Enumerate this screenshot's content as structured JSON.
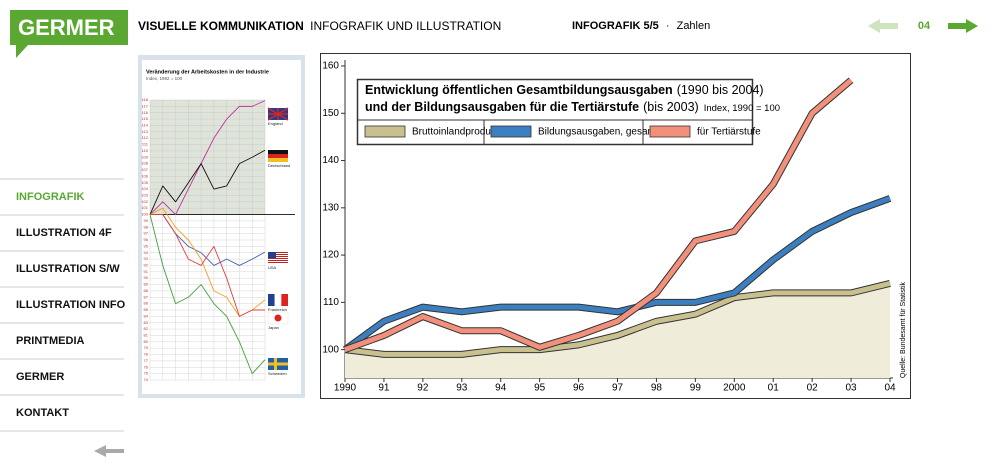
{
  "header": {
    "logo": "GERMER",
    "section": "VISUELLE KOMMUNIKATION",
    "subtitle": "INFOGRAFIK UND ILLUSTRATION",
    "page": "INFOGRAFIK 5/5",
    "separator": "·",
    "page_topic": "Zahlen",
    "page_number": "04"
  },
  "nav": [
    "INFOGRAFIK",
    "ILLUSTRATION 4F",
    "ILLUSTRATION S/W",
    "ILLUSTRATION INFO",
    "PRINTMEDIA",
    "GERMER",
    "KONTAKT"
  ],
  "chart_data": [
    {
      "type": "line",
      "title": [
        "Entwicklung öffentlichen Gesamtbildungsausgaben",
        "und der Bildungsausgaben für die Tertiärstufe"
      ],
      "title_notes": [
        "(1990 bis 2004)",
        "(bis 2003)"
      ],
      "subtitle": "Index, 1990 = 100",
      "source": "Quelle: Bundesamt für Statistik",
      "categories": [
        "1990",
        "91",
        "92",
        "93",
        "94",
        "95",
        "96",
        "97",
        "98",
        "99",
        "2000",
        "01",
        "02",
        "03",
        "04"
      ],
      "series": [
        {
          "name": "Bruttoinlandprodukt",
          "color": "#c9c08f",
          "fill": "#efecd9",
          "values": [
            100,
            99,
            99,
            99,
            100,
            100,
            101,
            103,
            106,
            107.5,
            111,
            112,
            112,
            112,
            114
          ]
        },
        {
          "name": "Bildungsausgaben, gesamt",
          "color": "#3b7fc0",
          "values": [
            100,
            106,
            109,
            108,
            109,
            109,
            109,
            108,
            110,
            110,
            112,
            119,
            125,
            129,
            132
          ]
        },
        {
          "name": "für Tertiärstufe",
          "color": "#f2907c",
          "values": [
            100,
            103,
            107,
            104,
            104,
            100.5,
            103,
            106,
            112,
            123,
            125,
            135,
            150,
            157,
            null
          ]
        }
      ],
      "ylim": [
        94,
        160
      ],
      "yticks": [
        100,
        110,
        120,
        130,
        140,
        150,
        160
      ],
      "grid": false
    },
    {
      "type": "line",
      "title": "Veränderung der Arbeitskosten in der Industrie",
      "subtitle": "Index, 1992 = 100",
      "categories": [
        null,
        null,
        null,
        null,
        null,
        null,
        null,
        null,
        null,
        null
      ],
      "series": [
        {
          "name": "England",
          "color": "#c0309a",
          "values": [
            100,
            102,
            100,
            104,
            108,
            112,
            115,
            117,
            117,
            117.9
          ]
        },
        {
          "name": "Deutschland",
          "color": "#111111",
          "values": [
            100,
            104.5,
            102,
            105,
            108,
            104,
            104.5,
            108,
            109,
            110.1
          ]
        },
        {
          "name": "USA",
          "color": "#4a5fb0",
          "values": [
            100,
            100,
            97,
            95,
            94,
            92,
            93,
            92,
            93,
            94.1
          ]
        },
        {
          "name": "Frankreich",
          "color": "#f0a020",
          "values": [
            100,
            101,
            98,
            96,
            93,
            88,
            87,
            84,
            85,
            86.6
          ]
        },
        {
          "name": "Japan",
          "color": "#e04040",
          "values": [
            100,
            100,
            97,
            93,
            92,
            95,
            90,
            84,
            85,
            85
          ]
        },
        {
          "name": "Schweden",
          "color": "#40a040",
          "values": [
            100,
            92,
            86,
            87,
            89,
            86,
            84,
            80,
            75,
            77.2
          ]
        }
      ],
      "ylim": [
        74,
        118
      ],
      "yticks": [
        74,
        75,
        76,
        77,
        78,
        79,
        80,
        81,
        82,
        83,
        84,
        85,
        86,
        87,
        88,
        89,
        90,
        91,
        92,
        93,
        94,
        95,
        96,
        97,
        98,
        99,
        100,
        101,
        102,
        103,
        104,
        105,
        106,
        107,
        108,
        109,
        110,
        111,
        112,
        113,
        114,
        115,
        116,
        117,
        118
      ],
      "grid": true
    }
  ]
}
